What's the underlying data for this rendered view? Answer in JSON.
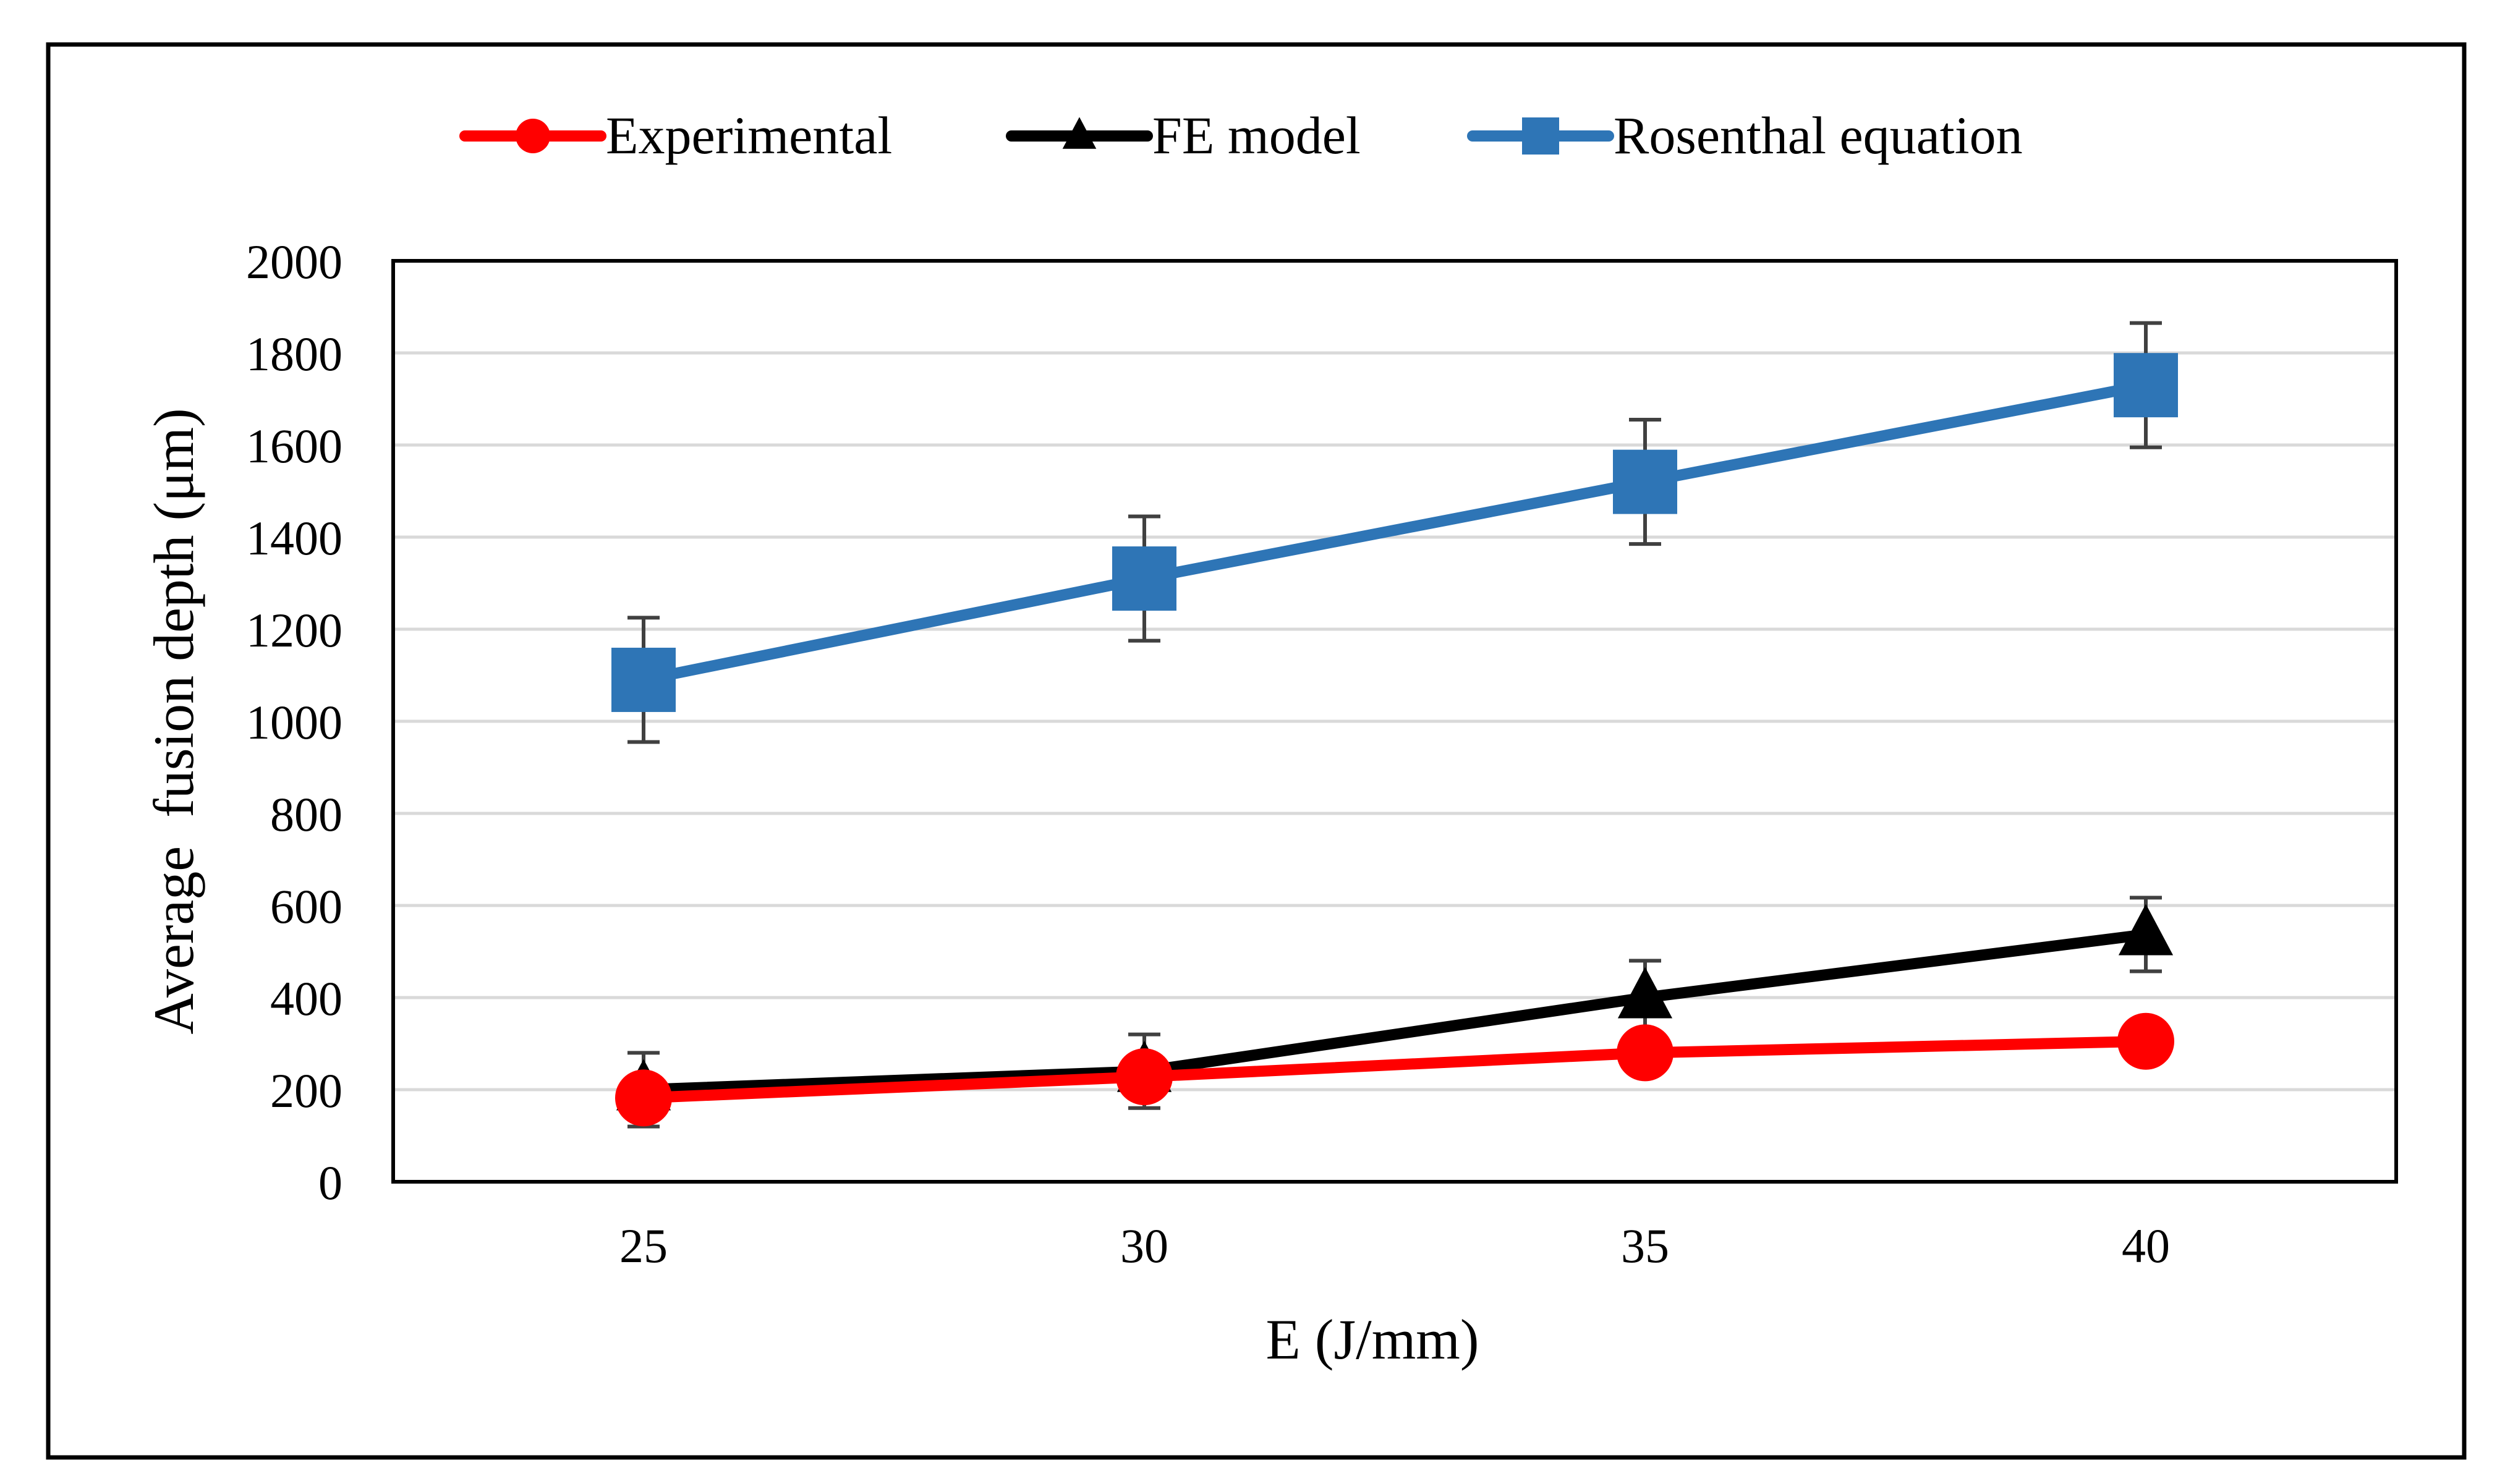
{
  "chart_data": {
    "type": "line",
    "title": "",
    "xlabel": "E (J/mm)",
    "ylabel": "Average  fusion depth (μm)",
    "categories": [
      "25",
      "30",
      "35",
      "40"
    ],
    "x": [
      25,
      30,
      35,
      40
    ],
    "ylim": [
      0,
      2000
    ],
    "yticks": [
      "0",
      "200",
      "400",
      "600",
      "800",
      "1000",
      "1200",
      "1400",
      "1600",
      "1800",
      "2000"
    ],
    "grid": true,
    "legend_position": "top-center",
    "series": [
      {
        "name": "Experimental",
        "color": "#ff0000",
        "marker": "circle",
        "values": [
          182,
          228,
          280,
          305
        ],
        "errors": [
          25,
          25,
          20,
          20
        ]
      },
      {
        "name": "FE model",
        "color": "#000000",
        "marker": "triangle",
        "values": [
          200,
          240,
          400,
          537
        ],
        "errors": [
          80,
          80,
          80,
          80
        ]
      },
      {
        "name": "Rosenthal equation",
        "color": "#2e75b6",
        "marker": "square",
        "values": [
          1090,
          1310,
          1520,
          1730
        ],
        "errors": [
          135,
          135,
          135,
          135
        ]
      }
    ]
  }
}
